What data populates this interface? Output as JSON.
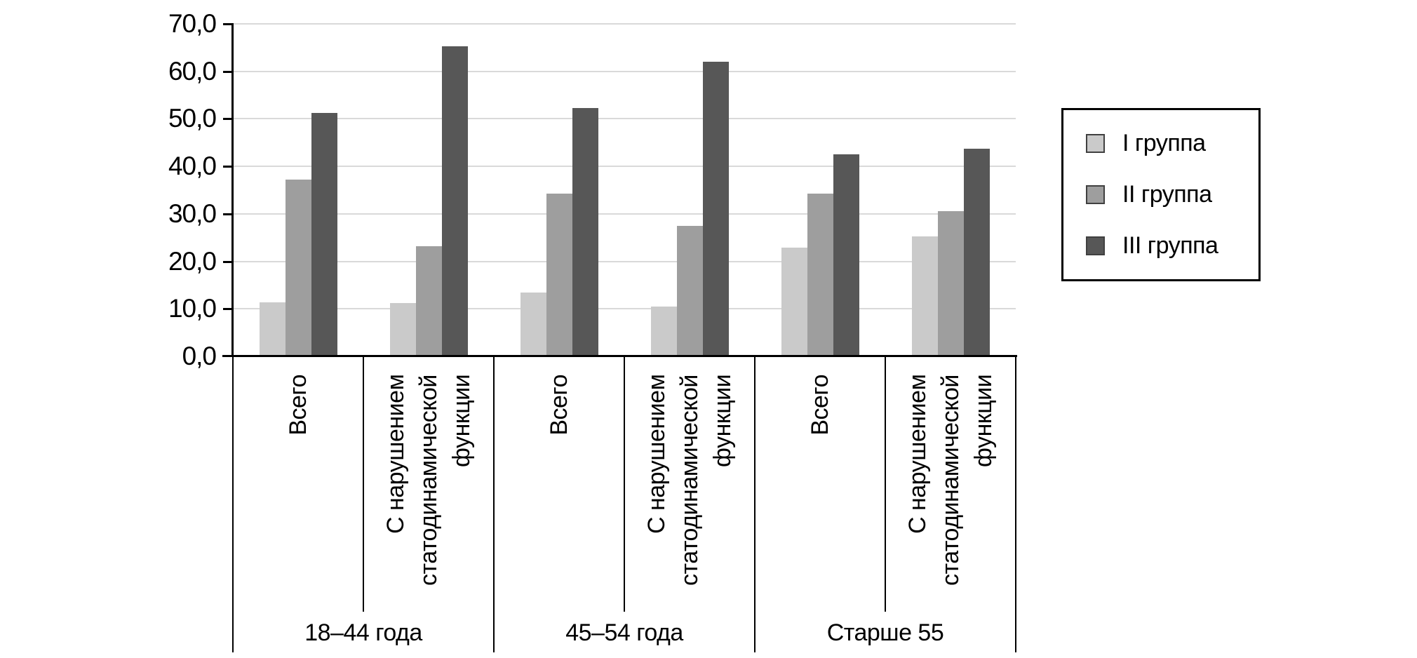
{
  "chart_data": {
    "type": "bar",
    "title": "",
    "y_axis": {
      "min": 0,
      "max": 70,
      "tick_step": 10,
      "tick_labels": [
        "0,0",
        "10,0",
        "20,0",
        "30,0",
        "40,0",
        "50,0",
        "60,0",
        "70,0"
      ]
    },
    "groups": [
      "18–44 года",
      "45–54 года",
      "Старше 55"
    ],
    "subcategory_labels": [
      "Всего",
      "С нарушением статодинамической функции",
      "Всего",
      "С нарушением статодинамической функции",
      "Всего",
      "С нарушением статодинамической функции"
    ],
    "series": [
      {
        "name": "I группа",
        "color": "#cacaca",
        "values": [
          11.3,
          11.2,
          13.4,
          10.5,
          22.9,
          25.3
        ]
      },
      {
        "name": "II группа",
        "color": "#9e9e9e",
        "values": [
          37.2,
          23.2,
          34.2,
          27.4,
          34.3,
          30.6
        ]
      },
      {
        "name": "III группа",
        "color": "#575757",
        "values": [
          51.2,
          65.3,
          52.3,
          62.0,
          42.6,
          43.7
        ]
      }
    ],
    "grid": true,
    "legend_position": "right",
    "colors": {
      "background": "#ffffff",
      "gridline": "#d9d9d9",
      "axis": "#000000",
      "text": "#000000",
      "swatch_border": "#404040"
    }
  }
}
